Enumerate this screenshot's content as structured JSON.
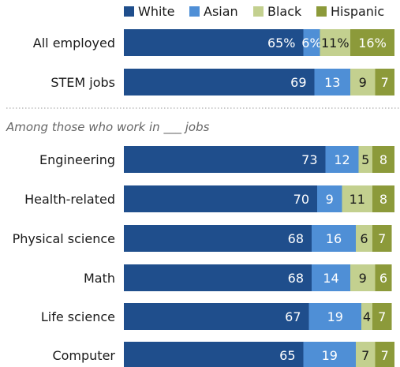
{
  "chart_data": {
    "type": "bar",
    "orientation": "horizontal",
    "stacked": true,
    "xlim": [
      0,
      100
    ],
    "grid": false,
    "legend": {
      "placement": "top"
    },
    "series": [
      {
        "name": "White",
        "color": "#1f4e8c"
      },
      {
        "name": "Asian",
        "color": "#4f8fd6"
      },
      {
        "name": "Black",
        "color": "#c3d08f"
      },
      {
        "name": "Hispanic",
        "color": "#8c9a3a"
      }
    ],
    "groups": [
      {
        "subheading": "",
        "rows": [
          {
            "category": "All employed",
            "values": [
              65,
              6,
              11,
              16
            ],
            "labels": [
              "65%",
              "6%",
              "11%",
              "16%"
            ]
          },
          {
            "category": "STEM jobs",
            "values": [
              69,
              13,
              9,
              7
            ],
            "labels": [
              "69",
              "13",
              "9",
              "7"
            ]
          }
        ]
      },
      {
        "subheading": "Among those who work in ___ jobs",
        "rows": [
          {
            "category": "Engineering",
            "values": [
              73,
              12,
              5,
              8
            ],
            "labels": [
              "73",
              "12",
              "5",
              "8"
            ]
          },
          {
            "category": "Health-related",
            "values": [
              70,
              9,
              11,
              8
            ],
            "labels": [
              "70",
              "9",
              "11",
              "8"
            ]
          },
          {
            "category": "Physical science",
            "values": [
              68,
              16,
              6,
              7
            ],
            "labels": [
              "68",
              "16",
              "6",
              "7"
            ]
          },
          {
            "category": "Math",
            "values": [
              68,
              14,
              9,
              6
            ],
            "labels": [
              "68",
              "14",
              "9",
              "6"
            ]
          },
          {
            "category": "Life science",
            "values": [
              67,
              19,
              4,
              7
            ],
            "labels": [
              "67",
              "19",
              "4",
              "7"
            ]
          },
          {
            "category": "Computer",
            "values": [
              65,
              19,
              7,
              7
            ],
            "labels": [
              "65",
              "19",
              "7",
              "7"
            ]
          }
        ]
      }
    ]
  }
}
